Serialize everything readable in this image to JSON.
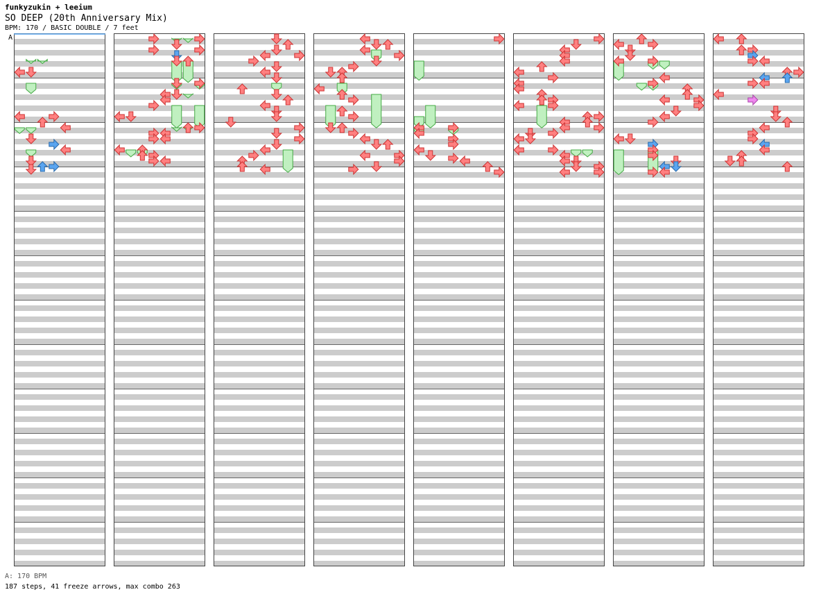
{
  "header": {
    "artist": "funkyzukin + leeium",
    "song_title": "SO DEEP (20th Anniversary Mix)",
    "subtitle": "BPM: 170 / BASIC DOUBLE / 7 feet"
  },
  "footer": {
    "bpm_legend": "A: 170 BPM",
    "summary": "187 steps, 41 freeze arrows, max combo 263"
  },
  "chart_data": {
    "type": "step-chart",
    "bpm_marker": "A",
    "lanes": [
      "L1",
      "D1",
      "U1",
      "R1",
      "L2",
      "D2",
      "U2",
      "R2"
    ],
    "columns": 8,
    "measures_per_column": 12,
    "colors": {
      "stripe": "#cccccc",
      "quarter_arrow": "#ff8080",
      "eighth_arrow": "#5aa5f0",
      "sixteenth_arrow": "#ee88ee",
      "freeze": "#c0f0c0",
      "freeze_border": "#44aa44"
    },
    "notes": [
      [
        1,
        3.0,
        0
      ],
      [
        1,
        3.0,
        1
      ],
      [
        1,
        7.0,
        0
      ],
      [
        1,
        7.0,
        3
      ],
      [
        1,
        7.5,
        2
      ],
      [
        1,
        8.0,
        4
      ],
      [
        1,
        9.0,
        1
      ],
      [
        1,
        9.5,
        3
      ],
      [
        1,
        10.0,
        4
      ],
      [
        1,
        11.0,
        1
      ],
      [
        1,
        11.5,
        2
      ],
      [
        1,
        11.5,
        3
      ],
      [
        1,
        11.75,
        1
      ],
      [
        2,
        0.0,
        3
      ],
      [
        2,
        0.0,
        7
      ],
      [
        2,
        0.5,
        5
      ],
      [
        2,
        1.0,
        3
      ],
      [
        2,
        1.0,
        7
      ],
      [
        2,
        1.5,
        5
      ],
      [
        2,
        2.0,
        5
      ],
      [
        2,
        2.0,
        6
      ],
      [
        2,
        4.0,
        5
      ],
      [
        2,
        4.0,
        7
      ],
      [
        2,
        5.0,
        4
      ],
      [
        2,
        5.0,
        5
      ],
      [
        2,
        5.5,
        4
      ],
      [
        2,
        6.0,
        3
      ],
      [
        2,
        7.0,
        0
      ],
      [
        2,
        7.0,
        1
      ],
      [
        2,
        8.0,
        6
      ],
      [
        2,
        8.0,
        7
      ],
      [
        2,
        8.5,
        3
      ],
      [
        2,
        8.5,
        4
      ],
      [
        2,
        9.0,
        3
      ],
      [
        2,
        9.0,
        4
      ],
      [
        2,
        10.0,
        0
      ],
      [
        2,
        10.0,
        2
      ],
      [
        2,
        10.5,
        2
      ],
      [
        2,
        10.5,
        3
      ],
      [
        2,
        11.0,
        3
      ],
      [
        2,
        11.0,
        4
      ],
      [
        3,
        0.0,
        5
      ],
      [
        3,
        0.5,
        6
      ],
      [
        3,
        1.0,
        5
      ],
      [
        3,
        1.5,
        4
      ],
      [
        3,
        1.5,
        7
      ],
      [
        3,
        2.0,
        3
      ],
      [
        3,
        2.5,
        5
      ],
      [
        3,
        3.0,
        4
      ],
      [
        3,
        3.5,
        5
      ],
      [
        3,
        4.5,
        2
      ],
      [
        3,
        5.0,
        5
      ],
      [
        3,
        5.5,
        6
      ],
      [
        3,
        6.0,
        4
      ],
      [
        3,
        6.5,
        5
      ],
      [
        3,
        7.0,
        5
      ],
      [
        3,
        7.5,
        1
      ],
      [
        3,
        8.0,
        7
      ],
      [
        3,
        8.5,
        5
      ],
      [
        3,
        9.0,
        7
      ],
      [
        3,
        9.5,
        5
      ],
      [
        3,
        10.0,
        4
      ],
      [
        3,
        10.5,
        3
      ],
      [
        3,
        11.0,
        2
      ],
      [
        3,
        11.5,
        2
      ],
      [
        3,
        11.75,
        4
      ],
      [
        4,
        0.0,
        4
      ],
      [
        4,
        0.5,
        5
      ],
      [
        4,
        0.5,
        6
      ],
      [
        4,
        1.0,
        4
      ],
      [
        4,
        1.5,
        7
      ],
      [
        4,
        2.0,
        5
      ],
      [
        4,
        2.5,
        3
      ],
      [
        4,
        3.0,
        1
      ],
      [
        4,
        3.0,
        2
      ],
      [
        4,
        3.5,
        2
      ],
      [
        4,
        4.5,
        0
      ],
      [
        4,
        5.0,
        2
      ],
      [
        4,
        5.5,
        3
      ],
      [
        4,
        6.5,
        2
      ],
      [
        4,
        7.0,
        3
      ],
      [
        4,
        8.0,
        1
      ],
      [
        4,
        8.0,
        2
      ],
      [
        4,
        8.5,
        3
      ],
      [
        4,
        9.0,
        4
      ],
      [
        4,
        9.5,
        5
      ],
      [
        4,
        9.5,
        6
      ],
      [
        4,
        10.5,
        4
      ],
      [
        4,
        10.5,
        7
      ],
      [
        4,
        11.0,
        7
      ],
      [
        4,
        11.5,
        5
      ],
      [
        4,
        11.75,
        3
      ],
      [
        5,
        0.0,
        7
      ],
      [
        5,
        8.0,
        0
      ],
      [
        5,
        8.0,
        3
      ],
      [
        5,
        8.5,
        0
      ],
      [
        5,
        9.0,
        3
      ],
      [
        5,
        9.5,
        3
      ],
      [
        5,
        10.0,
        0
      ],
      [
        5,
        10.5,
        1
      ],
      [
        5,
        10.75,
        3
      ],
      [
        5,
        11.0,
        4
      ],
      [
        5,
        11.5,
        6
      ],
      [
        5,
        12.0,
        7
      ],
      [
        6,
        0.0,
        7
      ],
      [
        6,
        0.5,
        5
      ],
      [
        6,
        1.0,
        4
      ],
      [
        6,
        1.5,
        4
      ],
      [
        6,
        2.0,
        4
      ],
      [
        6,
        2.5,
        2
      ],
      [
        6,
        3.0,
        0
      ],
      [
        6,
        3.5,
        3
      ],
      [
        6,
        4.0,
        0
      ],
      [
        6,
        4.5,
        0
      ],
      [
        6,
        5.0,
        2
      ],
      [
        6,
        5.5,
        2
      ],
      [
        6,
        5.5,
        3
      ],
      [
        6,
        6.0,
        0
      ],
      [
        6,
        6.0,
        3
      ],
      [
        6,
        7.0,
        6
      ],
      [
        6,
        7.0,
        7
      ],
      [
        6,
        7.5,
        4
      ],
      [
        6,
        7.5,
        6
      ],
      [
        6,
        8.0,
        4
      ],
      [
        6,
        8.0,
        7
      ],
      [
        6,
        8.5,
        1
      ],
      [
        6,
        8.5,
        3
      ],
      [
        6,
        9.0,
        0
      ],
      [
        6,
        9.0,
        1
      ],
      [
        6,
        10.0,
        0
      ],
      [
        6,
        10.0,
        3
      ],
      [
        6,
        10.5,
        4
      ],
      [
        6,
        11.0,
        4
      ],
      [
        6,
        11.0,
        5
      ],
      [
        6,
        11.5,
        5
      ],
      [
        6,
        11.5,
        7
      ],
      [
        6,
        12.0,
        4
      ],
      [
        6,
        12.0,
        7
      ],
      [
        7,
        0.0,
        2
      ],
      [
        7,
        0.5,
        0
      ],
      [
        7,
        0.5,
        3
      ],
      [
        7,
        1.0,
        1
      ],
      [
        7,
        1.5,
        1
      ],
      [
        7,
        2.0,
        0
      ],
      [
        7,
        2.0,
        3
      ],
      [
        7,
        3.5,
        4
      ],
      [
        7,
        4.0,
        3
      ],
      [
        7,
        4.5,
        6
      ],
      [
        7,
        5.0,
        6
      ],
      [
        7,
        5.5,
        4
      ],
      [
        7,
        5.5,
        7
      ],
      [
        7,
        6.0,
        7
      ],
      [
        7,
        6.5,
        5
      ],
      [
        7,
        7.0,
        4
      ],
      [
        7,
        7.5,
        3
      ],
      [
        7,
        9.0,
        0
      ],
      [
        7,
        9.0,
        1
      ],
      [
        7,
        9.5,
        3
      ],
      [
        7,
        10.0,
        3
      ],
      [
        7,
        10.5,
        3
      ],
      [
        7,
        11.0,
        5
      ],
      [
        7,
        11.5,
        4
      ],
      [
        7,
        11.5,
        5
      ],
      [
        7,
        12.0,
        3
      ],
      [
        7,
        12.0,
        4
      ],
      [
        8,
        0.0,
        0
      ],
      [
        8,
        0.0,
        2
      ],
      [
        8,
        1.0,
        2
      ],
      [
        8,
        1.0,
        3
      ],
      [
        8,
        1.5,
        3
      ],
      [
        8,
        2.0,
        3
      ],
      [
        8,
        2.0,
        4
      ],
      [
        8,
        3.0,
        6
      ],
      [
        8,
        3.0,
        7
      ],
      [
        8,
        3.5,
        4
      ],
      [
        8,
        3.5,
        6
      ],
      [
        8,
        4.0,
        3
      ],
      [
        8,
        4.0,
        4
      ],
      [
        8,
        5.0,
        0
      ],
      [
        8,
        5.5,
        3
      ],
      [
        8,
        6.5,
        5
      ],
      [
        8,
        7.0,
        5
      ],
      [
        8,
        7.5,
        6
      ],
      [
        8,
        8.0,
        4
      ],
      [
        8,
        8.5,
        3
      ],
      [
        8,
        9.0,
        3
      ],
      [
        8,
        9.5,
        4
      ],
      [
        8,
        10.0,
        4
      ],
      [
        8,
        10.5,
        2
      ],
      [
        8,
        11.0,
        1
      ],
      [
        8,
        11.0,
        2
      ],
      [
        8,
        11.5,
        6
      ]
    ],
    "freezes": [
      [
        1,
        2.0,
        2.1,
        1
      ],
      [
        1,
        2.0,
        2.1,
        2
      ],
      [
        1,
        4.0,
        4.8,
        1
      ],
      [
        1,
        8.0,
        8.4,
        0
      ],
      [
        1,
        8.0,
        8.4,
        1
      ],
      [
        1,
        10.0,
        10.5,
        1
      ],
      [
        2,
        0.0,
        0.2,
        5
      ],
      [
        2,
        0.0,
        0.2,
        6
      ],
      [
        2,
        2.0,
        3.8,
        5
      ],
      [
        2,
        2.0,
        3.8,
        6
      ],
      [
        2,
        4.0,
        4.4,
        5
      ],
      [
        2,
        4.0,
        4.4,
        7
      ],
      [
        2,
        5.0,
        5.2,
        5
      ],
      [
        2,
        5.0,
        5.2,
        6
      ],
      [
        2,
        6.0,
        7.9,
        5
      ],
      [
        2,
        6.0,
        7.9,
        7
      ],
      [
        2,
        8.0,
        8.2,
        5
      ],
      [
        2,
        8.0,
        8.2,
        6
      ],
      [
        2,
        10.0,
        10.5,
        1
      ],
      [
        2,
        10.0,
        10.5,
        2
      ],
      [
        3,
        4.0,
        4.6,
        5
      ],
      [
        3,
        10.0,
        11.9,
        6
      ],
      [
        4,
        1.0,
        1.9,
        5
      ],
      [
        4,
        4.0,
        4.9,
        2
      ],
      [
        4,
        5.0,
        7.9,
        5
      ],
      [
        4,
        6.0,
        7.9,
        1
      ],
      [
        5,
        2.0,
        3.6,
        0
      ],
      [
        5,
        6.0,
        7.9,
        1
      ],
      [
        5,
        7.0,
        7.9,
        0
      ],
      [
        5,
        8.0,
        8.5,
        0
      ],
      [
        5,
        8.0,
        8.5,
        3
      ],
      [
        6,
        6.0,
        7.9,
        2
      ],
      [
        6,
        10.0,
        10.5,
        5
      ],
      [
        6,
        10.0,
        10.5,
        6
      ],
      [
        7,
        2.0,
        3.6,
        0
      ],
      [
        7,
        2.0,
        2.6,
        3
      ],
      [
        7,
        2.0,
        2.6,
        4
      ],
      [
        7,
        4.0,
        4.5,
        2
      ],
      [
        7,
        4.0,
        4.5,
        3
      ],
      [
        7,
        10.0,
        12.1,
        0
      ],
      [
        7,
        10.0,
        12.1,
        3
      ]
    ],
    "note_kinds": {
      "blue": [
        [
          2,
          1.5,
          5
        ],
        [
          2,
          1.5,
          6
        ],
        [
          1,
          6.5,
          0
        ],
        [
          1,
          6.5,
          1
        ],
        [
          2,
          6.5,
          4
        ],
        [
          2,
          2.5,
          2
        ],
        [
          4,
          7.5,
          1
        ],
        [
          4,
          7.5,
          6
        ],
        [
          8,
          1.5,
          2
        ],
        [
          8,
          1.5,
          3
        ],
        [
          8,
          3.5,
          4
        ],
        [
          8,
          3.5,
          6
        ],
        [
          8,
          6.5,
          3
        ],
        [
          8,
          7.5,
          5
        ],
        [
          8,
          9.5,
          1
        ],
        [
          8,
          9.5,
          4
        ],
        [
          7,
          9.5,
          2
        ],
        [
          7,
          9.5,
          3
        ],
        [
          7,
          11.5,
          4
        ],
        [
          7,
          11.5,
          5
        ],
        [
          2,
          11.5,
          2
        ],
        [
          2,
          11.5,
          3
        ],
        [
          2,
          9.5,
          4
        ],
        [
          2,
          9.5,
          6
        ],
        [
          1,
          11.5,
          2
        ],
        [
          1,
          11.5,
          3
        ],
        [
          1,
          9.5,
          3
        ]
      ],
      "pink": [
        [
          8,
          5.5,
          3
        ]
      ]
    }
  }
}
